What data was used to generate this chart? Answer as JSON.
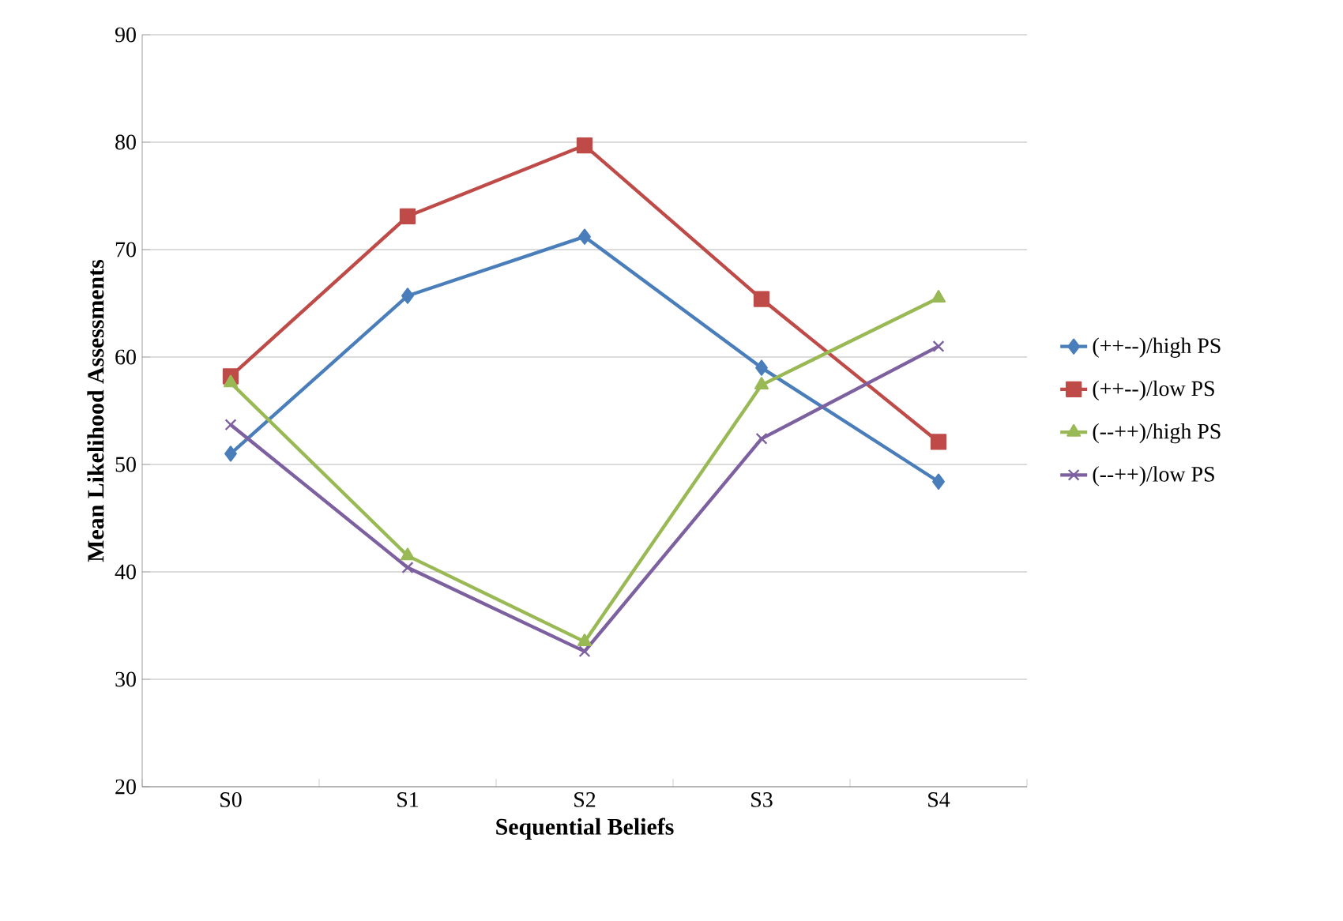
{
  "chart_data": {
    "type": "line",
    "xlabel": "Sequential Beliefs",
    "ylabel": "Mean Likelihood Assessments",
    "categories": [
      "S0",
      "S1",
      "S2",
      "S3",
      "S4"
    ],
    "series": [
      {
        "name": "(++--)/high PS",
        "color": "#4a7ebb",
        "marker": "diamond",
        "values": [
          51.0,
          65.7,
          71.2,
          59.0,
          48.4
        ]
      },
      {
        "name": "(++--)/low PS",
        "color": "#be4b48",
        "marker": "square",
        "values": [
          58.2,
          73.1,
          79.7,
          65.4,
          52.1
        ]
      },
      {
        "name": "(--++)/high PS",
        "color": "#98b954",
        "marker": "triangle",
        "values": [
          57.6,
          41.5,
          33.5,
          57.4,
          65.5
        ]
      },
      {
        "name": "(--++)/low PS",
        "color": "#7d60a0",
        "marker": "cross",
        "values": [
          53.7,
          40.4,
          32.6,
          52.4,
          61.0
        ]
      }
    ],
    "ylim": [
      20,
      90
    ],
    "yticks": [
      20,
      30,
      40,
      50,
      60,
      70,
      80,
      90
    ],
    "grid": "y",
    "legend": "right",
    "line_style": "solid"
  }
}
